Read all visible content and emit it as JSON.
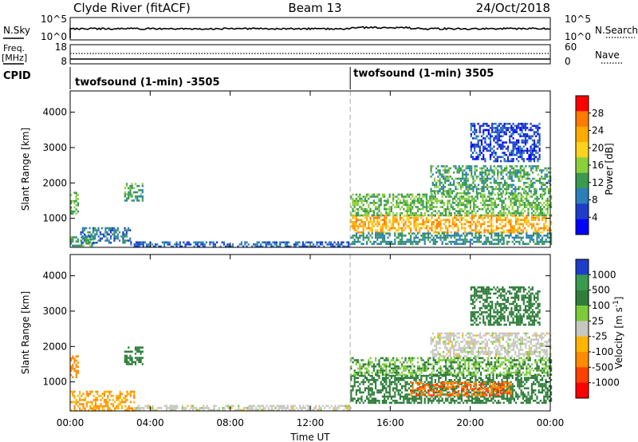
{
  "header": {
    "station": "Clyde River (fitACF)",
    "beam": "Beam 13",
    "date": "24/Oct/2018"
  },
  "noise_panel": {
    "left_label": "N.Sky",
    "left_ticks": [
      "10^5",
      "10^0"
    ],
    "right_ticks": [
      "10^5",
      "10^0"
    ],
    "right_label": "N.Search"
  },
  "freq_panel": {
    "left_label_1": "Freq.",
    "left_label_2": "[MHz]",
    "left_ticks": [
      "18",
      "8"
    ],
    "right_ticks": [
      "60",
      "0"
    ],
    "right_label": "Nave"
  },
  "cpid_panel": {
    "label": "CPID",
    "modes": [
      {
        "text": "twofsound (1-min) -3505",
        "start_hour": 0
      },
      {
        "text": "twofsound (1-min) 3505",
        "start_hour": 14
      }
    ]
  },
  "axes": {
    "ylabel": "Slant Range [km]",
    "xlabel": "Time UT",
    "x_ticks": [
      "00:00",
      "04:00",
      "08:00",
      "12:00",
      "16:00",
      "20:00",
      "00:00"
    ],
    "x_tick_hours": [
      0,
      4,
      8,
      12,
      16,
      20,
      24
    ],
    "y_ticks": [
      "1000",
      "2000",
      "3000",
      "4000"
    ],
    "y_tick_values": [
      1000,
      2000,
      3000,
      4000
    ],
    "xlim": [
      0,
      24
    ],
    "ylim": [
      180,
      4600
    ],
    "mode_change_hour": 14
  },
  "chart_data": [
    {
      "type": "heatmap",
      "panel": "power",
      "colorbar_label": "Power [dB]",
      "colorbar_ticks": [
        "28",
        "24",
        "20",
        "16",
        "12",
        "8",
        "4"
      ],
      "colorbar_colors": [
        "#ff0000",
        "#ff7a00",
        "#ffaa00",
        "#ffd21e",
        "#8ccf3c",
        "#3a9a50",
        "#2c7fb8",
        "#1c3ecb",
        "#0000ff"
      ],
      "regions": [
        {
          "t0": 0.0,
          "t1": 0.4,
          "r0": 1150,
          "r1": 1750,
          "level": 16
        },
        {
          "t0": 0.0,
          "t1": 1.2,
          "r0": 200,
          "r1": 550,
          "level": 14
        },
        {
          "t0": 0.5,
          "t1": 3.0,
          "r0": 300,
          "r1": 750,
          "level": 10
        },
        {
          "t0": 2.7,
          "t1": 3.6,
          "r0": 1500,
          "r1": 2000,
          "level": 14
        },
        {
          "t0": 3.0,
          "t1": 14.0,
          "r0": 200,
          "r1": 350,
          "level": 8
        },
        {
          "t0": 14.0,
          "t1": 24.0,
          "r0": 600,
          "r1": 1100,
          "level": 26
        },
        {
          "t0": 14.0,
          "t1": 24.0,
          "r0": 1100,
          "r1": 1700,
          "level": 16
        },
        {
          "t0": 14.0,
          "t1": 24.0,
          "r0": 300,
          "r1": 600,
          "level": 12
        },
        {
          "t0": 18.0,
          "t1": 24.0,
          "r0": 1700,
          "r1": 2500,
          "level": 14
        },
        {
          "t0": 20.0,
          "t1": 23.5,
          "r0": 2600,
          "r1": 3700,
          "level": 6
        }
      ]
    },
    {
      "type": "heatmap",
      "panel": "velocity",
      "colorbar_label": "Velocity [m s^-1]",
      "colorbar_ticks": [
        "1000",
        "500",
        "100",
        "25",
        "-25",
        "-100",
        "-500",
        "-1000"
      ],
      "colorbar_colors": [
        "#1c3ecb",
        "#3a9a50",
        "#2e7d3a",
        "#7ccc3a",
        "#c8c8c0",
        "#ffb400",
        "#ff8c00",
        "#ff4000",
        "#ff0000"
      ],
      "regions": [
        {
          "t0": 0.0,
          "t1": 0.4,
          "r0": 1150,
          "r1": 1750,
          "level": -100
        },
        {
          "t0": 0.0,
          "t1": 3.2,
          "r0": 200,
          "r1": 750,
          "level": -60
        },
        {
          "t0": 2.7,
          "t1": 3.6,
          "r0": 1500,
          "r1": 2000,
          "level": 200
        },
        {
          "t0": 3.2,
          "t1": 14.0,
          "r0": 200,
          "r1": 350,
          "level": 0
        },
        {
          "t0": 14.0,
          "t1": 24.0,
          "r0": 400,
          "r1": 1200,
          "level": 150
        },
        {
          "t0": 17.0,
          "t1": 22.0,
          "r0": 600,
          "r1": 1000,
          "level": -300
        },
        {
          "t0": 14.0,
          "t1": 24.0,
          "r0": 1200,
          "r1": 1700,
          "level": 60
        },
        {
          "t0": 18.0,
          "t1": 24.0,
          "r0": 1700,
          "r1": 2400,
          "level": 0
        },
        {
          "t0": 20.0,
          "t1": 23.5,
          "r0": 2600,
          "r1": 3700,
          "level": 100
        }
      ]
    }
  ]
}
